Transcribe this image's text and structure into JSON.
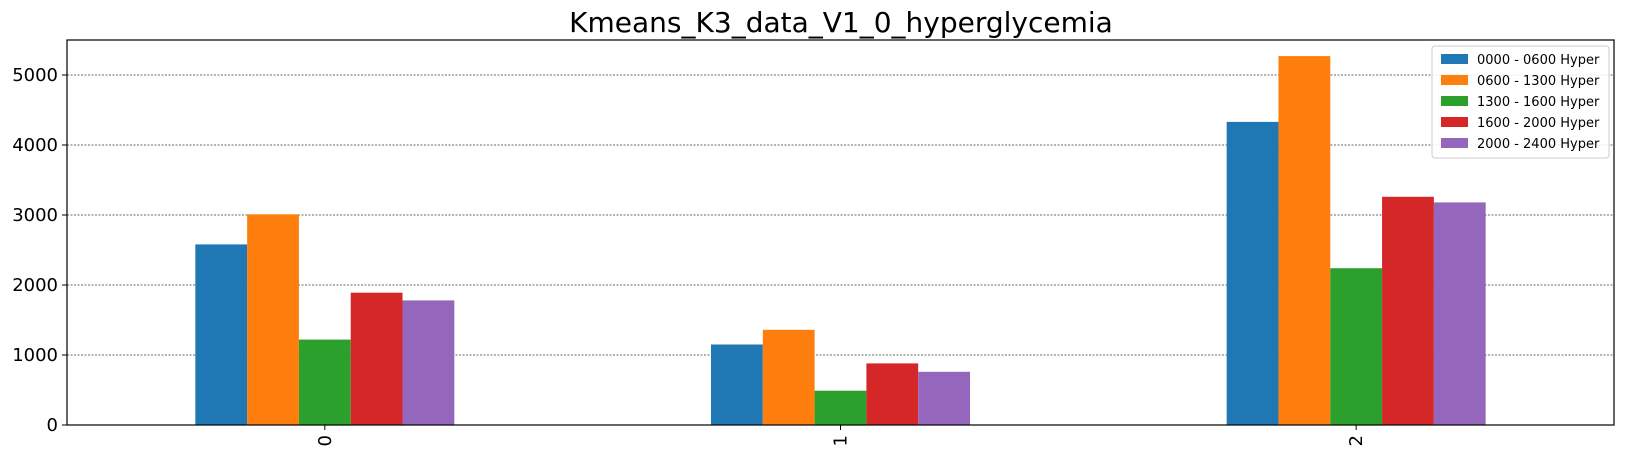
{
  "chart_data": {
    "type": "bar",
    "title": "Kmeans_K3_data_V1_0_hyperglycemia",
    "xlabel": "",
    "ylabel": "",
    "categories": [
      "0",
      "1",
      "2"
    ],
    "ylim": [
      0,
      5500
    ],
    "yticks": [
      0,
      1000,
      2000,
      3000,
      4000,
      5000
    ],
    "grid": "y-dotted",
    "legend_position": "top-right",
    "series": [
      {
        "name": "0000 - 0600 Hyper",
        "color": "#1f77b4",
        "values": [
          2580,
          1150,
          4330
        ]
      },
      {
        "name": "0600 - 1300 Hyper",
        "color": "#ff7f0e",
        "values": [
          3010,
          1360,
          5270
        ]
      },
      {
        "name": "1300 - 1600 Hyper",
        "color": "#2ca02c",
        "values": [
          1220,
          490,
          2240
        ]
      },
      {
        "name": "1600 - 2000 Hyper",
        "color": "#d62728",
        "values": [
          1890,
          880,
          3260
        ]
      },
      {
        "name": "2000 - 2400 Hyper",
        "color": "#9467bd",
        "values": [
          1780,
          760,
          3180
        ]
      }
    ]
  }
}
